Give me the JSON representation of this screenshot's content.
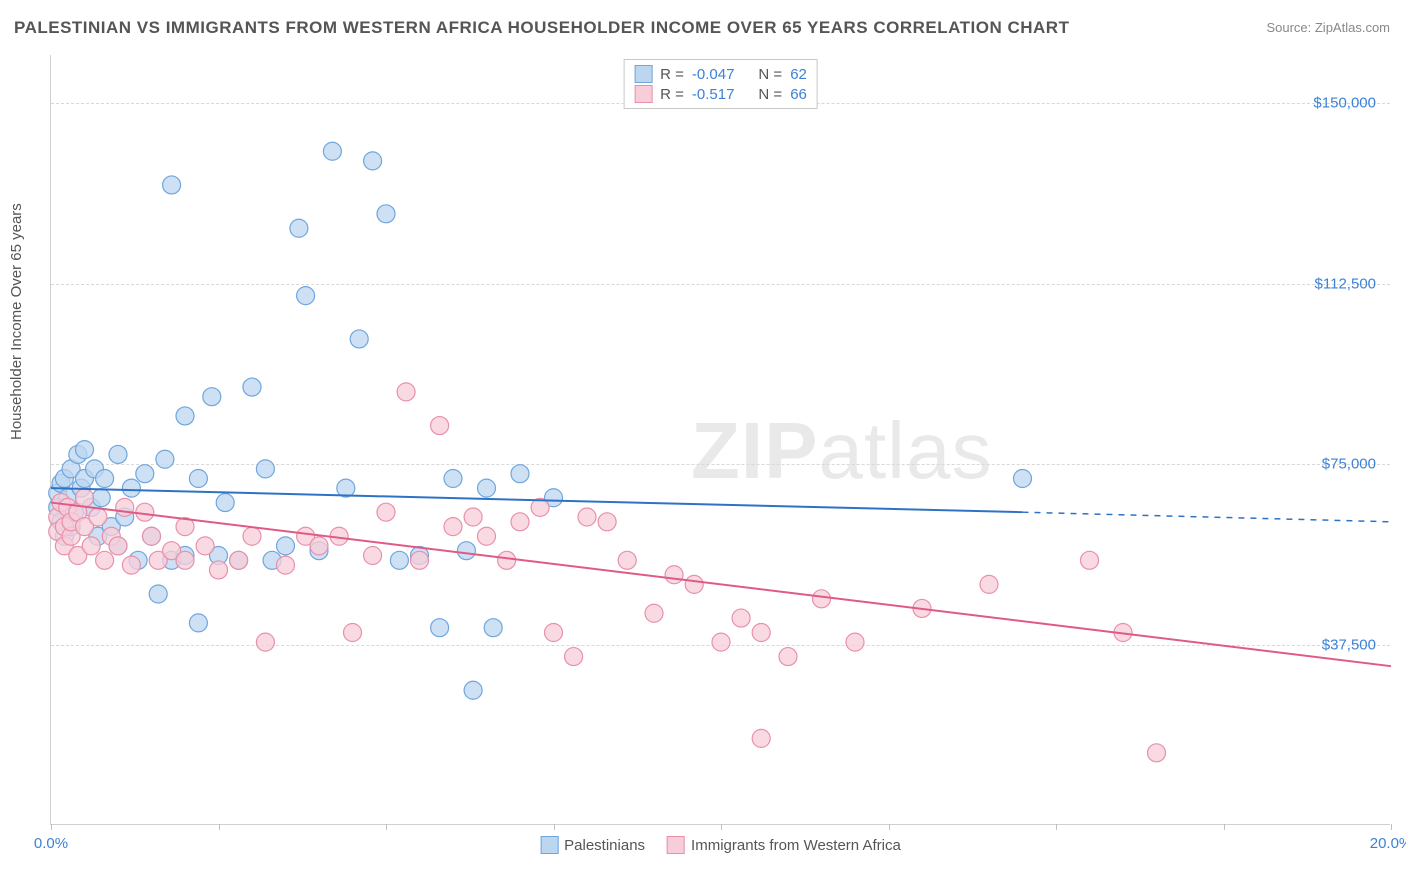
{
  "title": "PALESTINIAN VS IMMIGRANTS FROM WESTERN AFRICA HOUSEHOLDER INCOME OVER 65 YEARS CORRELATION CHART",
  "source_label": "Source: ZipAtlas.com",
  "y_axis_label": "Householder Income Over 65 years",
  "watermark_bold": "ZIP",
  "watermark_rest": "atlas",
  "chart": {
    "type": "scatter",
    "xlim": [
      0,
      20
    ],
    "ylim": [
      0,
      160000
    ],
    "y_ticks": [
      37500,
      75000,
      112500,
      150000
    ],
    "y_tick_labels": [
      "$37,500",
      "$75,000",
      "$112,500",
      "$150,000"
    ],
    "x_tick_positions": [
      0,
      2.5,
      5,
      7.5,
      10,
      12.5,
      15,
      17.5,
      20
    ],
    "x_tick_labels_shown": {
      "0": "0.0%",
      "20": "20.0%"
    },
    "background_color": "#ffffff",
    "grid_color": "#d8d8d8",
    "marker_radius": 9,
    "marker_stroke_width": 1.2,
    "line_width": 2,
    "series": [
      {
        "key": "palestinians",
        "label": "Palestinians",
        "marker_fill": "#bcd6f0",
        "marker_stroke": "#6fa6dd",
        "line_color": "#2f72c4",
        "trend": {
          "x0": 0,
          "y0": 70000,
          "x1": 14.5,
          "y1": 65000,
          "dash_x1": 20,
          "dash_y1": 63000
        },
        "R": "-0.047",
        "N": "62",
        "points": [
          [
            0.1,
            69000
          ],
          [
            0.1,
            66000
          ],
          [
            0.15,
            63000
          ],
          [
            0.15,
            71000
          ],
          [
            0.2,
            60000
          ],
          [
            0.2,
            72000
          ],
          [
            0.25,
            68000
          ],
          [
            0.3,
            74000
          ],
          [
            0.3,
            62000
          ],
          [
            0.35,
            65000
          ],
          [
            0.4,
            77000
          ],
          [
            0.45,
            70000
          ],
          [
            0.5,
            78000
          ],
          [
            0.5,
            72000
          ],
          [
            0.6,
            66000
          ],
          [
            0.65,
            74000
          ],
          [
            0.7,
            60000
          ],
          [
            0.75,
            68000
          ],
          [
            0.8,
            72000
          ],
          [
            0.9,
            62000
          ],
          [
            1.0,
            77000
          ],
          [
            1.0,
            58000
          ],
          [
            1.1,
            64000
          ],
          [
            1.2,
            70000
          ],
          [
            1.3,
            55000
          ],
          [
            1.4,
            73000
          ],
          [
            1.5,
            60000
          ],
          [
            1.6,
            48000
          ],
          [
            1.7,
            76000
          ],
          [
            1.8,
            55000
          ],
          [
            1.8,
            133000
          ],
          [
            2.0,
            85000
          ],
          [
            2.0,
            56000
          ],
          [
            2.2,
            72000
          ],
          [
            2.2,
            42000
          ],
          [
            2.4,
            89000
          ],
          [
            2.5,
            56000
          ],
          [
            2.6,
            67000
          ],
          [
            2.8,
            55000
          ],
          [
            3.0,
            91000
          ],
          [
            3.2,
            74000
          ],
          [
            3.3,
            55000
          ],
          [
            3.5,
            58000
          ],
          [
            3.7,
            124000
          ],
          [
            3.8,
            110000
          ],
          [
            4.0,
            57000
          ],
          [
            4.2,
            140000
          ],
          [
            4.4,
            70000
          ],
          [
            4.6,
            101000
          ],
          [
            4.8,
            138000
          ],
          [
            5.0,
            127000
          ],
          [
            5.2,
            55000
          ],
          [
            5.5,
            56000
          ],
          [
            5.8,
            41000
          ],
          [
            6.0,
            72000
          ],
          [
            6.2,
            57000
          ],
          [
            6.3,
            28000
          ],
          [
            6.5,
            70000
          ],
          [
            6.6,
            41000
          ],
          [
            7.0,
            73000
          ],
          [
            7.5,
            68000
          ],
          [
            14.5,
            72000
          ]
        ]
      },
      {
        "key": "western_africa",
        "label": "Immigrants from Western Africa",
        "marker_fill": "#f7cdd9",
        "marker_stroke": "#e890aa",
        "line_color": "#e05a86",
        "trend": {
          "x0": 0,
          "y0": 67000,
          "x1": 20,
          "y1": 33000
        },
        "R": "-0.517",
        "N": "66",
        "points": [
          [
            0.1,
            64000
          ],
          [
            0.1,
            61000
          ],
          [
            0.15,
            67000
          ],
          [
            0.2,
            62000
          ],
          [
            0.2,
            58000
          ],
          [
            0.25,
            66000
          ],
          [
            0.3,
            60000
          ],
          [
            0.3,
            63000
          ],
          [
            0.4,
            65000
          ],
          [
            0.4,
            56000
          ],
          [
            0.5,
            62000
          ],
          [
            0.5,
            68000
          ],
          [
            0.6,
            58000
          ],
          [
            0.7,
            64000
          ],
          [
            0.8,
            55000
          ],
          [
            0.9,
            60000
          ],
          [
            1.0,
            58000
          ],
          [
            1.1,
            66000
          ],
          [
            1.2,
            54000
          ],
          [
            1.4,
            65000
          ],
          [
            1.5,
            60000
          ],
          [
            1.6,
            55000
          ],
          [
            1.8,
            57000
          ],
          [
            2.0,
            62000
          ],
          [
            2.0,
            55000
          ],
          [
            2.3,
            58000
          ],
          [
            2.5,
            53000
          ],
          [
            2.8,
            55000
          ],
          [
            3.0,
            60000
          ],
          [
            3.2,
            38000
          ],
          [
            3.5,
            54000
          ],
          [
            3.8,
            60000
          ],
          [
            4.0,
            58000
          ],
          [
            4.3,
            60000
          ],
          [
            4.5,
            40000
          ],
          [
            4.8,
            56000
          ],
          [
            5.0,
            65000
          ],
          [
            5.3,
            90000
          ],
          [
            5.5,
            55000
          ],
          [
            5.8,
            83000
          ],
          [
            6.0,
            62000
          ],
          [
            6.3,
            64000
          ],
          [
            6.5,
            60000
          ],
          [
            6.8,
            55000
          ],
          [
            7.0,
            63000
          ],
          [
            7.3,
            66000
          ],
          [
            7.5,
            40000
          ],
          [
            7.8,
            35000
          ],
          [
            8.0,
            64000
          ],
          [
            8.3,
            63000
          ],
          [
            8.6,
            55000
          ],
          [
            9.0,
            44000
          ],
          [
            9.3,
            52000
          ],
          [
            9.6,
            50000
          ],
          [
            10.0,
            38000
          ],
          [
            10.3,
            43000
          ],
          [
            10.6,
            40000
          ],
          [
            10.6,
            18000
          ],
          [
            11.0,
            35000
          ],
          [
            11.5,
            47000
          ],
          [
            12.0,
            38000
          ],
          [
            13.0,
            45000
          ],
          [
            14.0,
            50000
          ],
          [
            15.5,
            55000
          ],
          [
            16.0,
            40000
          ],
          [
            16.5,
            15000
          ]
        ]
      }
    ]
  },
  "legend_top": {
    "R_label": "R =",
    "N_label": "N ="
  }
}
